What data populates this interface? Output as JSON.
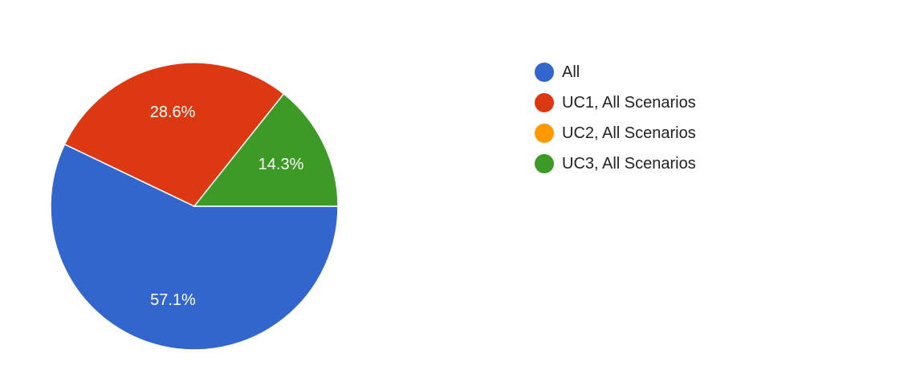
{
  "chart_data": {
    "type": "pie",
    "categories": [
      "All",
      "UC1, All Scenarios",
      "UC2, All Scenarios",
      "UC3, All Scenarios"
    ],
    "values": [
      57.1,
      28.6,
      0,
      14.3
    ],
    "labels": [
      "57.1%",
      "28.6%",
      "",
      "14.3%"
    ],
    "colors": [
      "#3366CC",
      "#DC3912",
      "#FF9900",
      "#3E9A26"
    ],
    "legend_position": "right",
    "start_angle_deg": 0,
    "direction": "clockwise"
  }
}
